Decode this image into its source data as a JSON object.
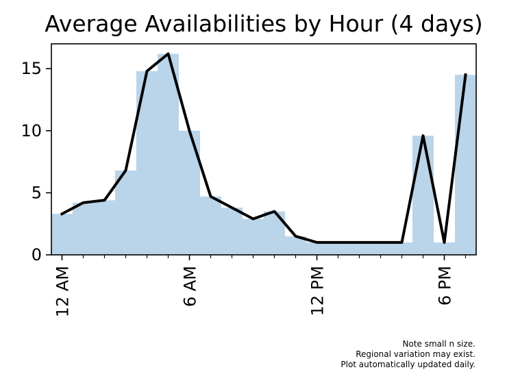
{
  "chart_data": {
    "type": "bar",
    "title": "Average Availabilities by Hour (4 days)",
    "xlabel": "",
    "ylabel": "",
    "x": [
      0,
      1,
      2,
      3,
      4,
      5,
      6,
      7,
      8,
      9,
      10,
      11,
      12,
      13,
      14,
      15,
      16,
      17,
      18,
      19
    ],
    "xlim": [
      -0.5,
      19.5
    ],
    "ylim": [
      0,
      17
    ],
    "yticks": [
      0,
      5,
      10,
      15
    ],
    "xticks": [
      {
        "x": 0,
        "label": "12 AM"
      },
      {
        "x": 6,
        "label": "6 AM"
      },
      {
        "x": 12,
        "label": "12 PM"
      },
      {
        "x": 18,
        "label": "6 PM"
      }
    ],
    "minor_xticks": [
      1,
      2,
      3,
      4,
      5,
      7,
      8,
      9,
      10,
      11,
      13,
      14,
      15,
      16,
      17,
      19
    ],
    "series": [
      {
        "kind": "bar",
        "color": "#bad4e9",
        "values": [
          3.3,
          4.2,
          4.4,
          6.8,
          14.8,
          16.2,
          10.0,
          4.7,
          3.8,
          2.9,
          3.5,
          1.5,
          1.0,
          1.0,
          1.0,
          1.0,
          1.0,
          9.6,
          1.0,
          14.5
        ]
      },
      {
        "kind": "line",
        "color": "#000000",
        "values": [
          3.3,
          4.2,
          4.4,
          6.8,
          14.8,
          16.2,
          10.0,
          4.7,
          3.8,
          2.9,
          3.5,
          1.5,
          1.0,
          1.0,
          1.0,
          1.0,
          1.0,
          9.6,
          1.0,
          14.5
        ]
      }
    ],
    "grid": false,
    "notes": [
      "Note small n size.",
      "Regional variation may exist.",
      "Plot automatically updated daily."
    ]
  }
}
